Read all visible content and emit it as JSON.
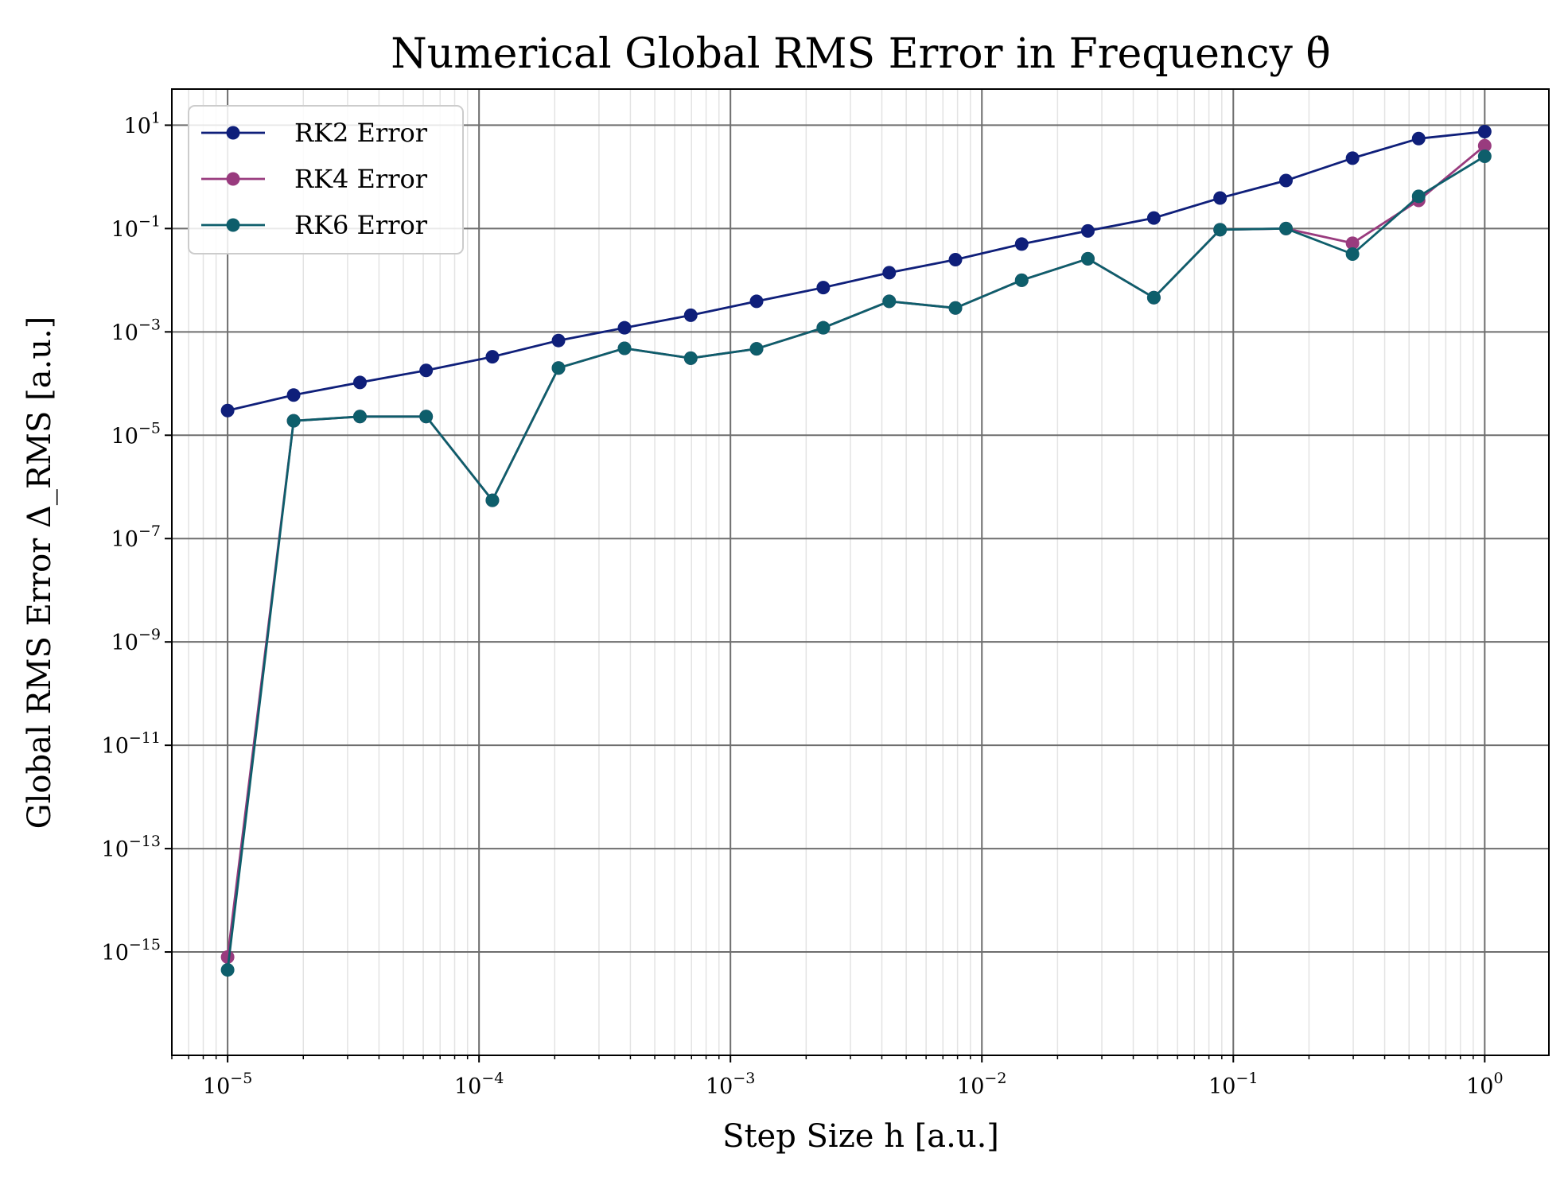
{
  "chart_data": {
    "type": "line",
    "title": "Numerical Global RMS Error in Frequency θ̇",
    "xlabel": "Step Size h [a.u.]",
    "ylabel": "Global RMS Error Δ_RMS [a.u.]",
    "x_scale": "log",
    "y_scale": "log",
    "xlim": [
      6e-06,
      1.8
    ],
    "ylim": [
      1e-17,
      50
    ],
    "x_ticks": [
      {
        "value": 1e-05,
        "base": "10",
        "exp": "−5"
      },
      {
        "value": 0.0001,
        "base": "10",
        "exp": "−4"
      },
      {
        "value": 0.001,
        "base": "10",
        "exp": "−3"
      },
      {
        "value": 0.01,
        "base": "10",
        "exp": "−2"
      },
      {
        "value": 0.1,
        "base": "10",
        "exp": "−1"
      },
      {
        "value": 1,
        "base": "10",
        "exp": "0"
      }
    ],
    "y_ticks": [
      {
        "value": 10.0,
        "base": "10",
        "exp": "1"
      },
      {
        "value": 0.1,
        "base": "10",
        "exp": "−1"
      },
      {
        "value": 0.001,
        "base": "10",
        "exp": "−3"
      },
      {
        "value": 1e-05,
        "base": "10",
        "exp": "−5"
      },
      {
        "value": 1e-07,
        "base": "10",
        "exp": "−7"
      },
      {
        "value": 1e-09,
        "base": "10",
        "exp": "−9"
      },
      {
        "value": 1e-11,
        "base": "10",
        "exp": "−11"
      },
      {
        "value": 1e-13,
        "base": "10",
        "exp": "−13"
      },
      {
        "value": 1e-15,
        "base": "10",
        "exp": "−15"
      }
    ],
    "grid": true,
    "legend_position": "top-left",
    "x": [
      1e-05,
      1.83e-05,
      3.36e-05,
      6.16e-05,
      0.000113,
      0.000207,
      0.000379,
      0.000695,
      0.00127,
      0.00234,
      0.00428,
      0.00785,
      0.0144,
      0.0264,
      0.0483,
      0.0886,
      0.162,
      0.298,
      0.546,
      1.0
    ],
    "series": [
      {
        "name": "RK2 Error",
        "color": "#0f1f7a",
        "values": [
          3e-05,
          6e-05,
          0.000105,
          0.00018,
          0.00033,
          0.00068,
          0.0012,
          0.0021,
          0.0039,
          0.0072,
          0.014,
          0.025,
          0.05,
          0.09,
          0.16,
          0.39,
          0.85,
          2.3,
          5.5,
          7.5
        ]
      },
      {
        "name": "RK4 Error",
        "color": "#993b7e",
        "values": [
          8e-16,
          1.9e-05,
          2.3e-05,
          2.3e-05,
          5.5e-07,
          0.0002,
          0.00048,
          0.00031,
          0.00047,
          0.0012,
          0.0039,
          0.0029,
          0.01,
          0.026,
          0.0046,
          0.095,
          0.1,
          0.052,
          0.35,
          4.0
        ]
      },
      {
        "name": "RK6 Error",
        "color": "#0e5e6b",
        "values": [
          4.5e-16,
          1.9e-05,
          2.3e-05,
          2.3e-05,
          5.5e-07,
          0.0002,
          0.00048,
          0.00031,
          0.00047,
          0.0012,
          0.0039,
          0.0029,
          0.01,
          0.026,
          0.0046,
          0.095,
          0.1,
          0.032,
          0.42,
          2.5
        ]
      }
    ]
  }
}
